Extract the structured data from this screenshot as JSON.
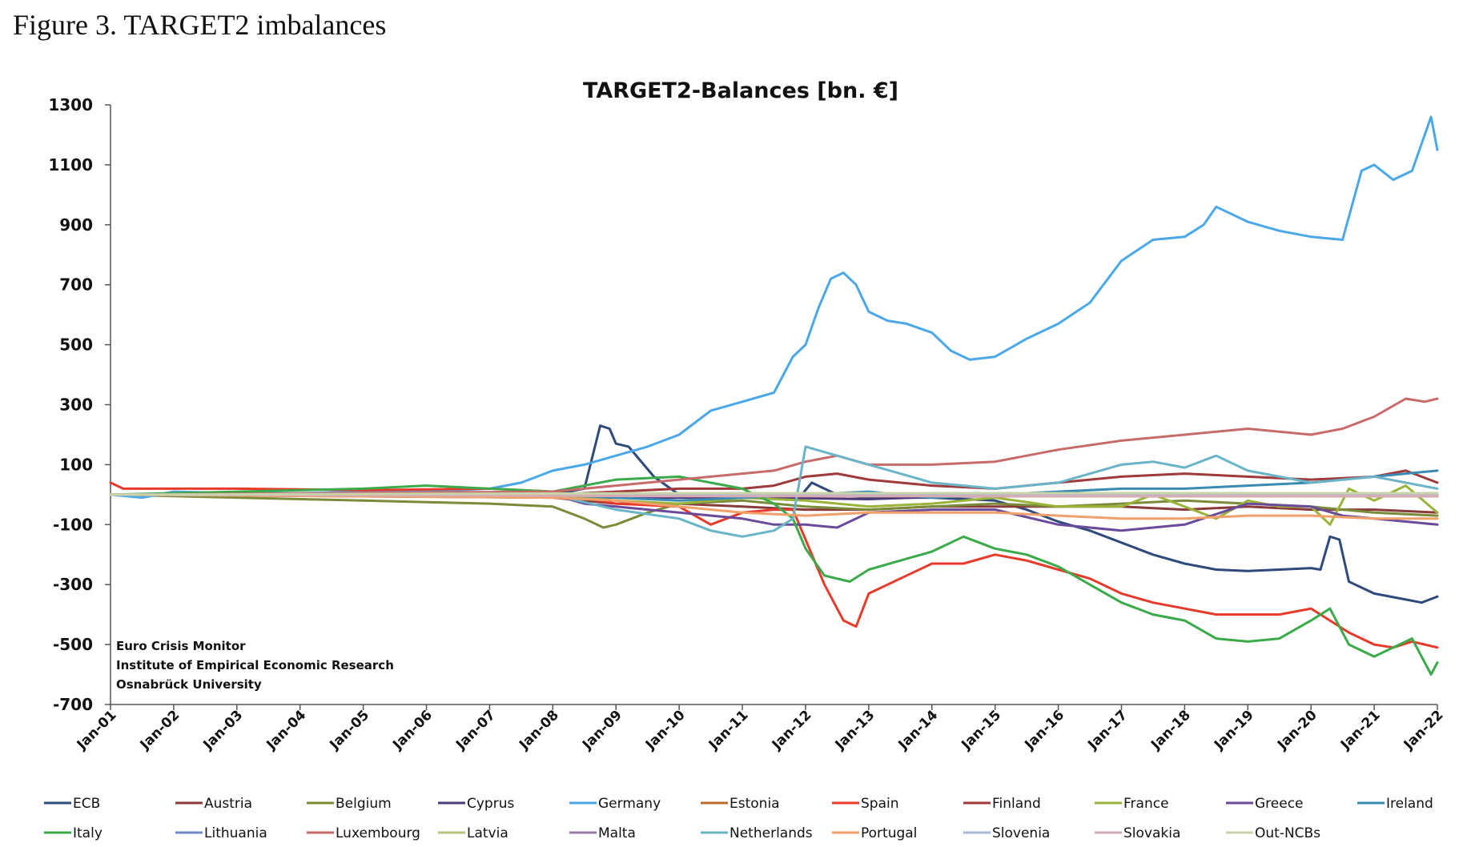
{
  "figure": {
    "caption": "Figure 3. TARGET2 imbalances"
  },
  "chart_data": {
    "type": "line",
    "title": "TARGET2-Balances [bn. €]",
    "xlabel": "",
    "ylabel": "",
    "ylim": [
      -700,
      1300
    ],
    "yticks": [
      1300,
      1100,
      900,
      700,
      500,
      300,
      100,
      -100,
      -300,
      -500,
      -700
    ],
    "xlim": [
      2001.0,
      2022.0
    ],
    "xtick_labels": [
      "Jan-01",
      "Jan-02",
      "Jan-03",
      "Jan-04",
      "Jan-05",
      "Jan-06",
      "Jan-07",
      "Jan-08",
      "Jan-09",
      "Jan-10",
      "Jan-11",
      "Jan-12",
      "Jan-13",
      "Jan-14",
      "Jan-15",
      "Jan-16",
      "Jan-17",
      "Jan-18",
      "Jan-19",
      "Jan-20",
      "Jan-21",
      "Jan-22"
    ],
    "grid": false,
    "legend_position": "bottom",
    "annotation": [
      "Euro Crisis Monitor",
      "Institute of Empirical Economic Research",
      "Osnabrück University"
    ],
    "series": [
      {
        "name": "ECB",
        "color": "#2e4a7a",
        "x": [
          2001,
          2008,
          2008.5,
          2008.75,
          2008.9,
          2009.0,
          2009.2,
          2009.6,
          2010,
          2011,
          2011.9,
          2012.1,
          2012.5,
          2013,
          2014,
          2015,
          2015.5,
          2016,
          2016.5,
          2017,
          2017.5,
          2018,
          2018.5,
          2019,
          2019.5,
          2020,
          2020.15,
          2020.3,
          2020.45,
          2020.6,
          2021,
          2021.5,
          2021.75,
          2022
        ],
        "y": [
          0,
          0,
          20,
          230,
          220,
          170,
          160,
          60,
          0,
          -10,
          -10,
          40,
          0,
          -10,
          -10,
          -20,
          -50,
          -90,
          -120,
          -160,
          -200,
          -230,
          -250,
          -255,
          -250,
          -245,
          -250,
          -140,
          -150,
          -290,
          -330,
          -350,
          -360,
          -340
        ]
      },
      {
        "name": "Austria",
        "color": "#8b3a3a",
        "x": [
          2001,
          2008,
          2009,
          2010,
          2011,
          2012,
          2013,
          2014,
          2015,
          2016,
          2017,
          2018,
          2019,
          2020,
          2021,
          2022
        ],
        "y": [
          0,
          -10,
          -30,
          -30,
          -40,
          -50,
          -50,
          -40,
          -40,
          -40,
          -40,
          -50,
          -40,
          -50,
          -50,
          -60
        ]
      },
      {
        "name": "Belgium",
        "color": "#7a8c3a",
        "x": [
          2001,
          2003,
          2005,
          2007,
          2008,
          2008.5,
          2008.8,
          2009,
          2009.5,
          2010,
          2011,
          2012,
          2013,
          2014,
          2015,
          2016,
          2017,
          2018,
          2019,
          2020,
          2021,
          2022
        ],
        "y": [
          0,
          -10,
          -20,
          -30,
          -40,
          -80,
          -110,
          -100,
          -60,
          -30,
          -20,
          -40,
          -50,
          -40,
          -30,
          -40,
          -30,
          -20,
          -30,
          -40,
          -60,
          -70
        ]
      },
      {
        "name": "Cyprus",
        "color": "#4b3a7a",
        "x": [
          2001,
          2008,
          2009,
          2010,
          2011,
          2012,
          2013,
          2014,
          2015,
          2016,
          2017,
          2018,
          2019,
          2020,
          2021,
          2022
        ],
        "y": [
          0,
          -5,
          -10,
          -10,
          -8,
          -12,
          -15,
          -8,
          -5,
          -5,
          -5,
          -5,
          -5,
          -5,
          -5,
          -5
        ]
      },
      {
        "name": "Germany",
        "color": "#4aa8e8",
        "x": [
          2001,
          2001.5,
          2002,
          2003,
          2004,
          2005,
          2006,
          2007,
          2007.5,
          2008,
          2008.5,
          2009,
          2009.5,
          2010,
          2010.5,
          2011,
          2011.5,
          2011.8,
          2012,
          2012.2,
          2012.4,
          2012.6,
          2012.8,
          2013,
          2013.3,
          2013.6,
          2014,
          2014.3,
          2014.6,
          2015,
          2015.5,
          2016,
          2016.5,
          2017,
          2017.5,
          2018,
          2018.3,
          2018.5,
          2019,
          2019.5,
          2020,
          2020.5,
          2020.8,
          2021,
          2021.3,
          2021.6,
          2021.9,
          2022
        ],
        "y": [
          0,
          -10,
          10,
          5,
          5,
          10,
          10,
          20,
          40,
          80,
          100,
          130,
          160,
          200,
          280,
          310,
          340,
          460,
          500,
          620,
          720,
          740,
          700,
          610,
          580,
          570,
          540,
          480,
          450,
          460,
          520,
          570,
          640,
          780,
          850,
          860,
          900,
          960,
          910,
          880,
          860,
          850,
          1080,
          1100,
          1050,
          1080,
          1260,
          1150
        ]
      },
      {
        "name": "Estonia",
        "color": "#b86a2a",
        "x": [
          2001,
          2011,
          2015,
          2022
        ],
        "y": [
          0,
          -2,
          -3,
          -3
        ]
      },
      {
        "name": "Spain",
        "color": "#e83a2a",
        "x": [
          2001,
          2001.2,
          2003,
          2005,
          2007,
          2008,
          2009,
          2010,
          2010.5,
          2011,
          2011.5,
          2011.8,
          2012,
          2012.3,
          2012.6,
          2012.8,
          2013,
          2013.5,
          2014,
          2014.5,
          2015,
          2015.5,
          2016,
          2016.5,
          2017,
          2017.5,
          2018,
          2018.5,
          2019,
          2019.5,
          2020,
          2020.3,
          2020.6,
          2021,
          2021.3,
          2021.6,
          2022
        ],
        "y": [
          40,
          20,
          20,
          15,
          20,
          10,
          -30,
          -40,
          -100,
          -60,
          -50,
          -50,
          -150,
          -300,
          -420,
          -440,
          -330,
          -280,
          -230,
          -230,
          -200,
          -220,
          -250,
          -280,
          -330,
          -360,
          -380,
          -400,
          -400,
          -400,
          -380,
          -420,
          -460,
          -500,
          -510,
          -490,
          -510
        ]
      },
      {
        "name": "Finland",
        "color": "#a03a3a",
        "x": [
          2001,
          2008,
          2009,
          2010,
          2011,
          2011.5,
          2012,
          2012.5,
          2013,
          2014,
          2015,
          2016,
          2017,
          2018,
          2019,
          2020,
          2021,
          2021.5,
          2022
        ],
        "y": [
          0,
          0,
          10,
          20,
          20,
          30,
          60,
          70,
          50,
          30,
          20,
          40,
          60,
          70,
          60,
          50,
          60,
          80,
          40
        ]
      },
      {
        "name": "France",
        "color": "#9ab43a",
        "x": [
          2001,
          2008,
          2009,
          2010,
          2011,
          2012,
          2013,
          2014,
          2015,
          2016,
          2017,
          2017.5,
          2018,
          2018.5,
          2019,
          2019.5,
          2020,
          2020.3,
          2020.6,
          2021,
          2021.5,
          2022
        ],
        "y": [
          0,
          0,
          -20,
          -30,
          -10,
          -20,
          -40,
          -30,
          -10,
          -40,
          -40,
          0,
          -40,
          -80,
          -20,
          -40,
          -40,
          -100,
          20,
          -20,
          30,
          -60
        ]
      },
      {
        "name": "Greece",
        "color": "#6a4a9a",
        "x": [
          2001,
          2008,
          2008.5,
          2009,
          2010,
          2011,
          2011.5,
          2012,
          2012.5,
          2013,
          2014,
          2015,
          2016,
          2017,
          2018,
          2019,
          2020,
          2020.5,
          2021,
          2022
        ],
        "y": [
          0,
          0,
          -30,
          -40,
          -60,
          -80,
          -100,
          -100,
          -110,
          -60,
          -50,
          -50,
          -100,
          -120,
          -100,
          -30,
          -40,
          -70,
          -80,
          -100
        ]
      },
      {
        "name": "Ireland",
        "color": "#3a8ab4",
        "x": [
          2001,
          2008,
          2009,
          2010,
          2011,
          2012,
          2013,
          2014,
          2015,
          2016,
          2017,
          2018,
          2019,
          2020,
          2021,
          2022
        ],
        "y": [
          0,
          0,
          -10,
          -20,
          -10,
          0,
          10,
          -10,
          0,
          10,
          20,
          20,
          30,
          40,
          60,
          80
        ]
      },
      {
        "name": "Italy",
        "color": "#3aaa4a",
        "x": [
          2001,
          2005,
          2006,
          2007,
          2008,
          2009,
          2010,
          2011,
          2011.5,
          2011.8,
          2012,
          2012.3,
          2012.7,
          2013,
          2013.5,
          2014,
          2014.5,
          2015,
          2015.5,
          2016,
          2016.5,
          2017,
          2017.5,
          2018,
          2018.5,
          2019,
          2019.5,
          2020,
          2020.3,
          2020.6,
          2021,
          2021.3,
          2021.6,
          2021.9,
          2022
        ],
        "y": [
          0,
          20,
          30,
          20,
          10,
          50,
          60,
          20,
          -30,
          -80,
          -180,
          -270,
          -290,
          -250,
          -220,
          -190,
          -140,
          -180,
          -200,
          -240,
          -300,
          -360,
          -400,
          -420,
          -480,
          -490,
          -480,
          -420,
          -380,
          -500,
          -540,
          -510,
          -480,
          -600,
          -560
        ]
      },
      {
        "name": "Lithuania",
        "color": "#6a8ac8",
        "x": [
          2001,
          2015,
          2022
        ],
        "y": [
          0,
          -5,
          -5
        ]
      },
      {
        "name": "Luxembourg",
        "color": "#c86a6a",
        "x": [
          2001,
          2008,
          2009,
          2010,
          2011,
          2011.5,
          2012,
          2012.5,
          2013,
          2014,
          2015,
          2016,
          2017,
          2018,
          2019,
          2020,
          2020.5,
          2021,
          2021.5,
          2021.8,
          2022
        ],
        "y": [
          0,
          10,
          30,
          50,
          70,
          80,
          110,
          130,
          100,
          100,
          110,
          150,
          180,
          200,
          220,
          200,
          220,
          260,
          320,
          310,
          320
        ]
      },
      {
        "name": "Latvia",
        "color": "#b4c87a",
        "x": [
          2001,
          2014,
          2022
        ],
        "y": [
          0,
          -5,
          -5
        ]
      },
      {
        "name": "Malta",
        "color": "#9a7aaa",
        "x": [
          2001,
          2022
        ],
        "y": [
          0,
          0
        ]
      },
      {
        "name": "Netherlands",
        "color": "#6ab4c8",
        "x": [
          2001,
          2008,
          2009,
          2010,
          2010.5,
          2011,
          2011.5,
          2011.8,
          2012,
          2012.5,
          2013,
          2013.5,
          2014,
          2015,
          2016,
          2017,
          2017.5,
          2018,
          2018.5,
          2019,
          2020,
          2021,
          2022
        ],
        "y": [
          0,
          0,
          -50,
          -80,
          -120,
          -140,
          -120,
          -80,
          160,
          130,
          100,
          70,
          40,
          20,
          40,
          100,
          110,
          90,
          130,
          80,
          40,
          60,
          20
        ]
      },
      {
        "name": "Portugal",
        "color": "#f0a06a",
        "x": [
          2001,
          2008,
          2009,
          2010,
          2011,
          2012,
          2013,
          2014,
          2015,
          2016,
          2017,
          2018,
          2019,
          2020,
          2021,
          2022
        ],
        "y": [
          0,
          -10,
          -20,
          -40,
          -60,
          -70,
          -60,
          -60,
          -60,
          -70,
          -80,
          -80,
          -70,
          -70,
          -80,
          -80
        ]
      },
      {
        "name": "Slovenia",
        "color": "#a8b8d8",
        "x": [
          2001,
          2022
        ],
        "y": [
          0,
          0
        ]
      },
      {
        "name": "Slovakia",
        "color": "#d8aab4",
        "x": [
          2001,
          2010,
          2022
        ],
        "y": [
          0,
          -5,
          -5
        ]
      },
      {
        "name": "Out-NCBs",
        "color": "#c8d4a8",
        "x": [
          2001,
          2010,
          2022
        ],
        "y": [
          0,
          5,
          5
        ]
      }
    ]
  }
}
